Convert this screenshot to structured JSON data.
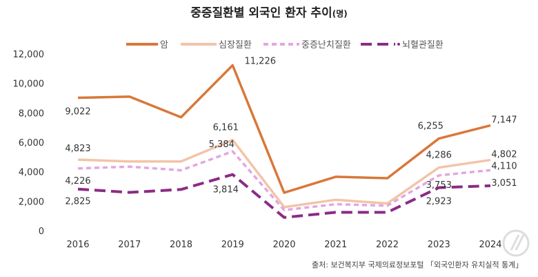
{
  "title": "중증질환별 외국인 환자 추이",
  "title_unit": "(명)",
  "source": "출처: 보건복지부 국제의료정보포털 「외국인환자 유치실적 통계」",
  "watermark": "뉴스1",
  "chart_data": {
    "type": "line",
    "title": "중증질환별 외국인 환자 추이(명)",
    "categories": [
      "2016",
      "2017",
      "2018",
      "2019",
      "2020",
      "2021",
      "2022",
      "2023",
      "2024"
    ],
    "ylim": [
      0,
      12000
    ],
    "yticks": [
      "0",
      "2,000",
      "4,000",
      "6,000",
      "8,000",
      "10,000",
      "12,000"
    ],
    "grid": false,
    "legend": "top",
    "series": [
      {
        "name": "암",
        "color": "#d9773a",
        "dash": "none",
        "values": [
          9022,
          9100,
          7700,
          11226,
          2580,
          3660,
          3560,
          6255,
          7147
        ],
        "labels": [
          "9,022",
          null,
          null,
          "11,226",
          null,
          null,
          null,
          "6,255",
          "7,147"
        ]
      },
      {
        "name": "심장질환",
        "color": "#f2c4a8",
        "dash": "none",
        "values": [
          4823,
          4700,
          4700,
          6161,
          1600,
          2100,
          1850,
          4286,
          4802
        ],
        "labels": [
          "4,823",
          null,
          null,
          "6,161",
          null,
          null,
          null,
          "4,286",
          "4,802"
        ]
      },
      {
        "name": "중증난치질환",
        "color": "#e3a6e0",
        "dash": "short",
        "values": [
          4226,
          4350,
          4100,
          5384,
          1400,
          1800,
          1700,
          3753,
          4110
        ],
        "labels": [
          "4,226",
          null,
          null,
          "5,384",
          null,
          null,
          null,
          "3,753",
          "4,110"
        ]
      },
      {
        "name": "뇌혈관질환",
        "color": "#8b2b86",
        "dash": "long",
        "values": [
          2825,
          2600,
          2800,
          3814,
          900,
          1250,
          1250,
          2923,
          3051
        ],
        "labels": [
          "2,825",
          null,
          null,
          "3,814",
          null,
          null,
          null,
          "2,923",
          "3,051"
        ]
      }
    ]
  }
}
